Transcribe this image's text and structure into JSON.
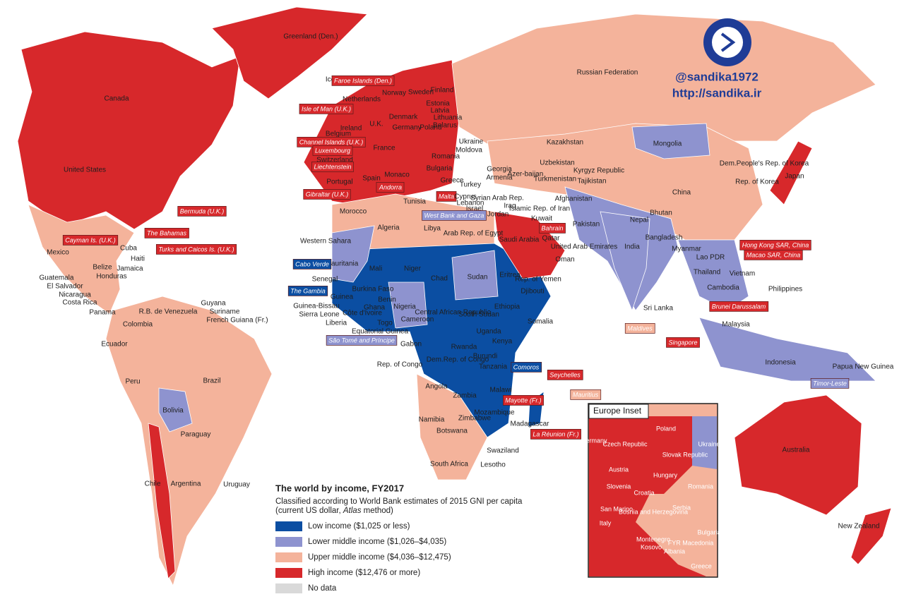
{
  "header": {
    "handle": "@sandika1972",
    "url": "http://sandika.ir"
  },
  "legend": {
    "title": "The world by income, FY2017",
    "subtitle_line1": "Classified according to World Bank estimates of 2015 GNI per capita",
    "subtitle_line2_start": "(current US dollar, ",
    "subtitle_line2_italic": "Atlas",
    "subtitle_line2_end": " method)",
    "items": [
      {
        "label": "Low income ($1,025 or less)",
        "color": "#0b4ea2"
      },
      {
        "label": "Lower middle income ($1,026–$4,035)",
        "color": "#8e93cf"
      },
      {
        "label": "Upper middle income ($4,036–$12,475)",
        "color": "#f4b39b"
      },
      {
        "label": "High income ($12,476 or more)",
        "color": "#d7282b"
      },
      {
        "label": "No data",
        "color": "#d9d9d9"
      }
    ]
  },
  "inset": {
    "title": "Europe Inset",
    "labels": [
      "Poland",
      "Germany",
      "Czech Republic",
      "Slovak Republic",
      "Ukraine",
      "Austria",
      "Hungary",
      "Slovenia",
      "Croatia",
      "Romania",
      "San Marino",
      "Bosnia and Herzegovina",
      "Serbia",
      "Italy",
      "Bulgaria",
      "Montenegro",
      "Kosovo",
      "FYR Macedonia",
      "Albania",
      "Greece"
    ]
  },
  "labels": [
    {
      "text": "Canada"
    },
    {
      "text": "United States"
    },
    {
      "text": "Greenland (Den.)"
    },
    {
      "text": "Iceland"
    },
    {
      "text": "Faroe Islands (Den.)",
      "box": 3
    },
    {
      "text": "Norway"
    },
    {
      "text": "Sweden"
    },
    {
      "text": "Finland"
    },
    {
      "text": "Estonia"
    },
    {
      "text": "Latvia"
    },
    {
      "text": "Lithuania"
    },
    {
      "text": "Belarus"
    },
    {
      "text": "Netherlands"
    },
    {
      "text": "Denmark"
    },
    {
      "text": "Isle of Man (U.K.)",
      "box": 3
    },
    {
      "text": "Ireland"
    },
    {
      "text": "U.K."
    },
    {
      "text": "Germany"
    },
    {
      "text": "Poland"
    },
    {
      "text": "Belgium"
    },
    {
      "text": "Channel Islands (U.K.)",
      "box": 3
    },
    {
      "text": "Luxembourg",
      "box": 3
    },
    {
      "text": "Switzerland"
    },
    {
      "text": "Liechtenstein",
      "box": 3
    },
    {
      "text": "France"
    },
    {
      "text": "Ukraine"
    },
    {
      "text": "Moldova"
    },
    {
      "text": "Romania"
    },
    {
      "text": "Bulgaria"
    },
    {
      "text": "Portugal"
    },
    {
      "text": "Spain"
    },
    {
      "text": "Monaco"
    },
    {
      "text": "Andorra",
      "box": 3
    },
    {
      "text": "Greece"
    },
    {
      "text": "Malta",
      "box": 3
    },
    {
      "text": "Gibraltar (U.K.)",
      "box": 3
    },
    {
      "text": "Turkey"
    },
    {
      "text": "Georgia"
    },
    {
      "text": "Armenia"
    },
    {
      "text": "Azer-baijan"
    },
    {
      "text": "Russian Federation"
    },
    {
      "text": "Kazakhstan"
    },
    {
      "text": "Mongolia"
    },
    {
      "text": "China"
    },
    {
      "text": "Uzbekistan"
    },
    {
      "text": "Turkmenistan"
    },
    {
      "text": "Kyrgyz Republic"
    },
    {
      "text": "Tajikistan"
    },
    {
      "text": "Dem.People's Rep. of Korea"
    },
    {
      "text": "Japan"
    },
    {
      "text": "Rep. of Korea"
    },
    {
      "text": "Afghanistan"
    },
    {
      "text": "Pakistan"
    },
    {
      "text": "Islamic Rep. of Iran"
    },
    {
      "text": "Iraq"
    },
    {
      "text": "Syrian Arab Rep."
    },
    {
      "text": "Cyprus"
    },
    {
      "text": "Lebanon"
    },
    {
      "text": "Israel"
    },
    {
      "text": "Jordan"
    },
    {
      "text": "Kuwait"
    },
    {
      "text": "Bahrain",
      "box": 3
    },
    {
      "text": "Qatar"
    },
    {
      "text": "United Arab Emirates"
    },
    {
      "text": "Oman"
    },
    {
      "text": "Saudi Arabia"
    },
    {
      "text": "Rep. of Yemen"
    },
    {
      "text": "Djibouti"
    },
    {
      "text": "Eritrea"
    },
    {
      "text": "Arab Rep. of Egypt"
    },
    {
      "text": "Libya"
    },
    {
      "text": "Tunisia"
    },
    {
      "text": "Algeria"
    },
    {
      "text": "Morocco"
    },
    {
      "text": "Western Sahara"
    },
    {
      "text": "West Bank and Gaza",
      "box": 1
    },
    {
      "text": "Mauritania"
    },
    {
      "text": "Mali"
    },
    {
      "text": "Niger"
    },
    {
      "text": "Chad"
    },
    {
      "text": "Sudan"
    },
    {
      "text": "Cabo Verde",
      "box": 0
    },
    {
      "text": "The Gambia",
      "box": 0
    },
    {
      "text": "Senegal"
    },
    {
      "text": "Guinea"
    },
    {
      "text": "Guinea-Bissau"
    },
    {
      "text": "Sierra Leone"
    },
    {
      "text": "Liberia"
    },
    {
      "text": "Burkina Faso"
    },
    {
      "text": "Côte d'Ivoire"
    },
    {
      "text": "Ghana"
    },
    {
      "text": "Togo"
    },
    {
      "text": "Benin"
    },
    {
      "text": "Nigeria"
    },
    {
      "text": "Cameroon"
    },
    {
      "text": "Central African Republic"
    },
    {
      "text": "South Sudan"
    },
    {
      "text": "Ethiopia"
    },
    {
      "text": "Somalia"
    },
    {
      "text": "Uganda"
    },
    {
      "text": "Kenya"
    },
    {
      "text": "Equatorial Guinea"
    },
    {
      "text": "São Tomé and Príncipe",
      "box": 1
    },
    {
      "text": "Gabon"
    },
    {
      "text": "Rep. of Congo"
    },
    {
      "text": "Dem.Rep. of Congo"
    },
    {
      "text": "Rwanda"
    },
    {
      "text": "Burundi"
    },
    {
      "text": "Tanzania"
    },
    {
      "text": "Comoros",
      "box": 0
    },
    {
      "text": "Seychelles",
      "box": 3
    },
    {
      "text": "Angola"
    },
    {
      "text": "Malawi"
    },
    {
      "text": "Zambia"
    },
    {
      "text": "Mayotte (Fr.)",
      "box": 3
    },
    {
      "text": "Mauritius",
      "box": 2
    },
    {
      "text": "Mozambique"
    },
    {
      "text": "Zimbabwe"
    },
    {
      "text": "Madagascar"
    },
    {
      "text": "La Réunion (Fr.)",
      "box": 3
    },
    {
      "text": "Namibia"
    },
    {
      "text": "Botswana"
    },
    {
      "text": "Swaziland"
    },
    {
      "text": "South Africa"
    },
    {
      "text": "Lesotho"
    },
    {
      "text": "Mexico"
    },
    {
      "text": "Cayman Is. (U.K.)",
      "box": 3
    },
    {
      "text": "Cuba"
    },
    {
      "text": "The Bahamas",
      "box": 3
    },
    {
      "text": "Turks and Caicos Is. (U.K.)",
      "box": 3
    },
    {
      "text": "Bermuda (U.K.)",
      "box": 3
    },
    {
      "text": "Haiti"
    },
    {
      "text": "Jamaica"
    },
    {
      "text": "Belize"
    },
    {
      "text": "Guatemala"
    },
    {
      "text": "Honduras"
    },
    {
      "text": "El Salvador"
    },
    {
      "text": "Nicaragua"
    },
    {
      "text": "Costa Rica"
    },
    {
      "text": "Panama"
    },
    {
      "text": "R.B. de Venezuela"
    },
    {
      "text": "Guyana"
    },
    {
      "text": "Suriname"
    },
    {
      "text": "French Guiana (Fr.)"
    },
    {
      "text": "Colombia"
    },
    {
      "text": "Ecuador"
    },
    {
      "text": "Peru"
    },
    {
      "text": "Brazil"
    },
    {
      "text": "Bolivia"
    },
    {
      "text": "Paraguay"
    },
    {
      "text": "Chile"
    },
    {
      "text": "Argentina"
    },
    {
      "text": "Uruguay"
    },
    {
      "text": "Maldives",
      "box": 2
    },
    {
      "text": "Sri Lanka"
    },
    {
      "text": "India"
    },
    {
      "text": "Nepal"
    },
    {
      "text": "Bhutan"
    },
    {
      "text": "Bangladesh"
    },
    {
      "text": "Myanmar"
    },
    {
      "text": "Lao PDR"
    },
    {
      "text": "Thailand"
    },
    {
      "text": "Vietnam"
    },
    {
      "text": "Cambodia"
    },
    {
      "text": "Philippines"
    },
    {
      "text": "Brunei Darussalam",
      "box": 3
    },
    {
      "text": "Malaysia"
    },
    {
      "text": "Singapore",
      "box": 3
    },
    {
      "text": "Indonesia"
    },
    {
      "text": "Timor-Leste",
      "box": 1
    },
    {
      "text": "Papua New Guinea"
    },
    {
      "text": "Hong Kong SAR, China",
      "box": 3
    },
    {
      "text": "Macao SAR, China",
      "box": 3
    },
    {
      "text": "Australia"
    },
    {
      "text": "New Zealand"
    }
  ]
}
